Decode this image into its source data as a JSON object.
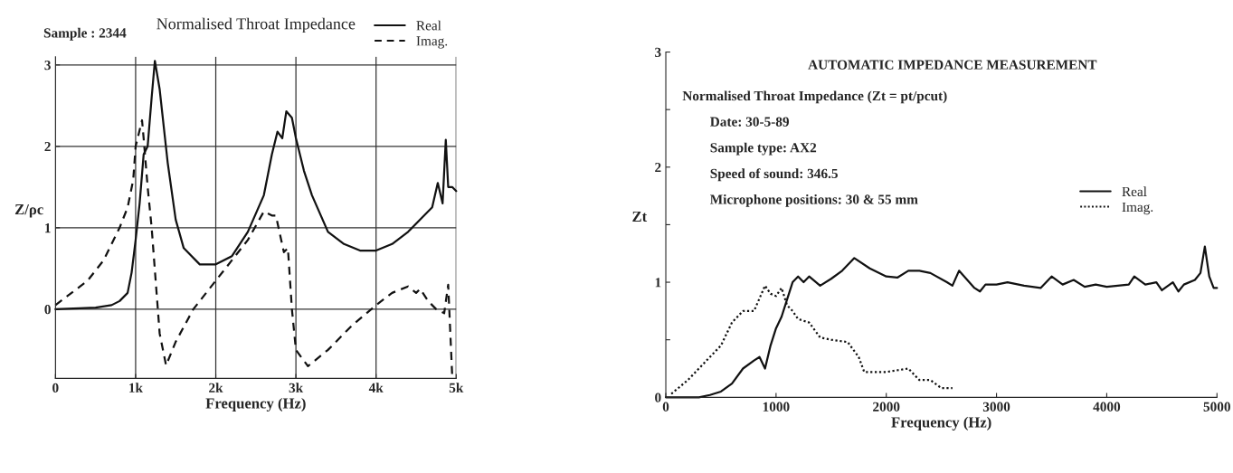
{
  "chart_data": [
    {
      "type": "line",
      "title": "Normalised Throat Impedance",
      "xlabel": "Frequency (Hz)",
      "ylabel": "Z/ρc",
      "annotations": [
        "Sample : 2344"
      ],
      "xlim": [
        0,
        5000
      ],
      "ylim": [
        -0.85,
        3.1
      ],
      "xticks": [
        0,
        {
          "value": 1000,
          "label": "1k"
        },
        {
          "value": 2000,
          "label": "2k"
        },
        {
          "value": 3000,
          "label": "3k"
        },
        {
          "value": 4000,
          "label": "4k"
        },
        {
          "value": 5000,
          "label": "5k"
        }
      ],
      "yticks": [
        0,
        1,
        2,
        3
      ],
      "grid": true,
      "legend": "top right",
      "series": [
        {
          "name": "Real",
          "color": "#111111",
          "line_style": "solid",
          "x": [
            0,
            300,
            500,
            700,
            800,
            900,
            950,
            1000,
            1050,
            1100,
            1150,
            1200,
            1240,
            1300,
            1400,
            1500,
            1600,
            1800,
            2000,
            2200,
            2400,
            2600,
            2700,
            2770,
            2830,
            2880,
            2950,
            3000,
            3100,
            3200,
            3400,
            3600,
            3800,
            4000,
            4200,
            4400,
            4600,
            4700,
            4770,
            4830,
            4870,
            4900,
            4950,
            5000
          ],
          "values": [
            0.0,
            0.01,
            0.02,
            0.05,
            0.1,
            0.2,
            0.45,
            0.85,
            1.3,
            1.9,
            2.0,
            2.6,
            3.05,
            2.7,
            1.8,
            1.1,
            0.75,
            0.55,
            0.55,
            0.65,
            0.95,
            1.4,
            1.9,
            2.18,
            2.1,
            2.43,
            2.35,
            2.1,
            1.7,
            1.4,
            0.95,
            0.8,
            0.72,
            0.72,
            0.8,
            0.95,
            1.15,
            1.25,
            1.55,
            1.3,
            2.08,
            1.5,
            1.5,
            1.45
          ]
        },
        {
          "name": "Imag.",
          "color": "#111111",
          "line_style": "dashed",
          "x": [
            0,
            200,
            400,
            600,
            800,
            900,
            970,
            1000,
            1080,
            1100,
            1150,
            1200,
            1300,
            1380,
            1500,
            1720,
            2000,
            2200,
            2400,
            2600,
            2700,
            2750,
            2850,
            2900,
            2950,
            3000,
            3150,
            3400,
            3700,
            4000,
            4200,
            4400,
            4500,
            4550,
            4650,
            4750,
            4850,
            4900,
            4950
          ],
          "values": [
            0.05,
            0.2,
            0.35,
            0.6,
            1.0,
            1.25,
            1.59,
            2.0,
            2.32,
            2.1,
            1.5,
            1.0,
            -0.3,
            -0.69,
            -0.4,
            0.0,
            0.35,
            0.6,
            0.85,
            1.2,
            1.15,
            1.15,
            0.7,
            0.75,
            0.0,
            -0.5,
            -0.7,
            -0.5,
            -0.2,
            0.05,
            0.2,
            0.28,
            0.2,
            0.25,
            0.1,
            0.0,
            -0.05,
            0.3,
            -0.82
          ]
        }
      ]
    },
    {
      "type": "line",
      "title": "AUTOMATIC IMPEDANCE MEASUREMENT",
      "subtitle": "Normalised Throat Impedance (Zt = pt/pcut)",
      "xlabel": "Frequency (Hz)",
      "ylabel": "Zt",
      "annotations": [
        "Date: 30-5-89",
        "Sample type: AX2",
        "Speed of sound: 346.5",
        "Microphone positions: 30 & 55 mm"
      ],
      "xlim": [
        0,
        5000
      ],
      "ylim": [
        0,
        3
      ],
      "xticks": [
        0,
        1000,
        2000,
        3000,
        4000,
        5000
      ],
      "yticks": [
        0,
        {
          "value": 0.5,
          "label": null
        },
        1,
        {
          "value": 1.5,
          "label": null
        },
        2,
        {
          "value": 2.5,
          "label": null
        },
        3
      ],
      "legend": "right",
      "series": [
        {
          "name": "Real",
          "color": "#111111",
          "line_style": "solid",
          "x": [
            0,
            300,
            400,
            500,
            600,
            700,
            800,
            850,
            900,
            950,
            1000,
            1050,
            1100,
            1150,
            1200,
            1250,
            1300,
            1400,
            1500,
            1600,
            1710,
            1850,
            2000,
            2100,
            2200,
            2300,
            2400,
            2550,
            2600,
            2660,
            2800,
            2850,
            2900,
            3000,
            3100,
            3250,
            3400,
            3500,
            3600,
            3700,
            3800,
            3900,
            4000,
            4200,
            4250,
            4350,
            4450,
            4500,
            4600,
            4650,
            4700,
            4800,
            4850,
            4890,
            4930,
            4970,
            5000
          ],
          "values": [
            0.0,
            0.0,
            0.02,
            0.05,
            0.12,
            0.25,
            0.32,
            0.35,
            0.25,
            0.45,
            0.6,
            0.7,
            0.85,
            1.0,
            1.05,
            1.0,
            1.05,
            0.97,
            1.03,
            1.1,
            1.21,
            1.12,
            1.05,
            1.04,
            1.1,
            1.1,
            1.08,
            1.0,
            0.97,
            1.1,
            0.95,
            0.92,
            0.98,
            0.98,
            1.0,
            0.97,
            0.95,
            1.05,
            0.98,
            1.02,
            0.96,
            0.98,
            0.96,
            0.98,
            1.05,
            0.98,
            1.0,
            0.93,
            1.0,
            0.92,
            0.98,
            1.02,
            1.08,
            1.31,
            1.05,
            0.95,
            0.95
          ]
        },
        {
          "name": "Imag.",
          "color": "#111111",
          "line_style": "dotted",
          "x": [
            50,
            200,
            300,
            400,
            500,
            600,
            700,
            800,
            900,
            950,
            1000,
            1050,
            1100,
            1150,
            1200,
            1300,
            1400,
            1500,
            1650,
            1750,
            1800,
            2000,
            2200,
            2300,
            2400,
            2500,
            2600
          ],
          "values": [
            0.03,
            0.15,
            0.25,
            0.35,
            0.45,
            0.65,
            0.75,
            0.75,
            0.97,
            0.9,
            0.88,
            0.95,
            0.8,
            0.75,
            0.68,
            0.65,
            0.52,
            0.5,
            0.48,
            0.35,
            0.22,
            0.22,
            0.25,
            0.15,
            0.15,
            0.08,
            0.08
          ]
        }
      ]
    }
  ]
}
